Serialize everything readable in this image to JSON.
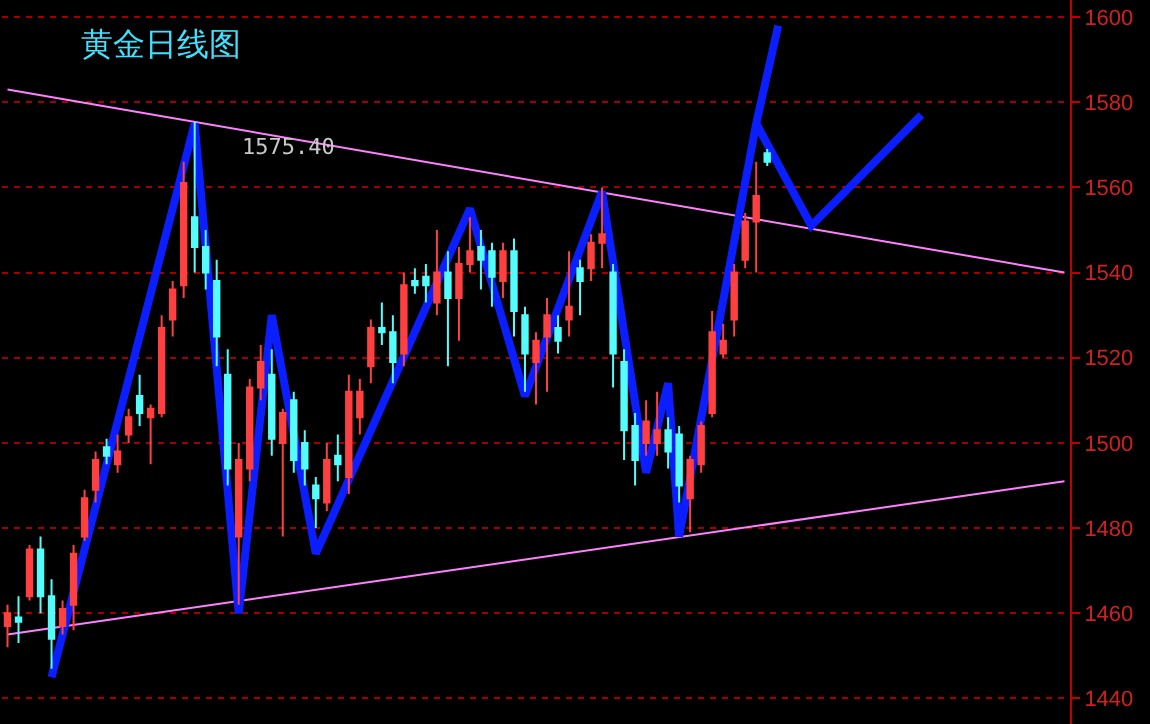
{
  "chart_data": {
    "type": "candlestick",
    "title": "黄金日线图",
    "categories": [
      null,
      null,
      null,
      null,
      null,
      null,
      null,
      null,
      null,
      null,
      null,
      null,
      null,
      null,
      null,
      null,
      null,
      null,
      null,
      null,
      null,
      null,
      null,
      null,
      null,
      null,
      null,
      null,
      null,
      null,
      null,
      null,
      null,
      null,
      null,
      null,
      null,
      null,
      null,
      null,
      null,
      null,
      null,
      null,
      null,
      null,
      null,
      null,
      null,
      null,
      null,
      null,
      null,
      null,
      null,
      null,
      null,
      null,
      null,
      null,
      null,
      null,
      null,
      null,
      null,
      null,
      null,
      null,
      null,
      null,
      null,
      null,
      null,
      null,
      null,
      null,
      null,
      null,
      null,
      null,
      null,
      null,
      null,
      null,
      null,
      null,
      null,
      null,
      null,
      null,
      null,
      null,
      null,
      null,
      null,
      null,
      null
    ],
    "ohlc": [
      [
        1457,
        1462,
        1452,
        1460
      ],
      [
        1459,
        1464,
        1453,
        1458
      ],
      [
        1464,
        1476,
        1463,
        1475
      ],
      [
        1475,
        1478,
        1460,
        1464
      ],
      [
        1464,
        1468,
        1447,
        1454
      ],
      [
        1457,
        1463,
        1455,
        1461
      ],
      [
        1462,
        1476,
        1456,
        1474
      ],
      [
        1478,
        1489,
        1477,
        1487
      ],
      [
        1489,
        1498,
        1486,
        1496
      ],
      [
        1499,
        1501,
        1495,
        1497
      ],
      [
        1495,
        1502,
        1493,
        1498
      ],
      [
        1502,
        1508,
        1500,
        1506
      ],
      [
        1511,
        1516,
        1504,
        1507
      ],
      [
        1506,
        1509,
        1495,
        1508
      ],
      [
        1507,
        1530,
        1506,
        1527
      ],
      [
        1529,
        1538,
        1525,
        1536
      ],
      [
        1537,
        1566,
        1534,
        1561
      ],
      [
        1553,
        1575.4,
        1540,
        1546
      ],
      [
        1546,
        1550,
        1536,
        1540
      ],
      [
        1538,
        1543,
        1518,
        1525
      ],
      [
        1516,
        1522,
        1490,
        1494
      ],
      [
        1478,
        1500,
        1462,
        1496
      ],
      [
        1494,
        1515,
        1491,
        1513
      ],
      [
        1513,
        1523,
        1510,
        1519
      ],
      [
        1516,
        1522,
        1497,
        1501
      ],
      [
        1500,
        1508,
        1478,
        1507
      ],
      [
        1510,
        1512,
        1493,
        1496
      ],
      [
        1500,
        1503,
        1490,
        1494
      ],
      [
        1490,
        1492,
        1480,
        1487
      ],
      [
        1486,
        1500,
        1484,
        1496
      ],
      [
        1497,
        1502,
        1491,
        1495
      ],
      [
        1492,
        1516,
        1488,
        1512
      ],
      [
        1506,
        1515,
        1502,
        1512
      ],
      [
        1518,
        1529,
        1514,
        1527
      ],
      [
        1527,
        1533,
        1523,
        1526
      ],
      [
        1526,
        1530,
        1514,
        1519
      ],
      [
        1521,
        1540,
        1518,
        1537
      ],
      [
        1538,
        1541,
        1535,
        1537
      ],
      [
        1539,
        1542,
        1533,
        1537
      ],
      [
        1533,
        1550,
        1530,
        1540
      ],
      [
        1540,
        1545,
        1518,
        1534
      ],
      [
        1534,
        1546,
        1524,
        1542
      ],
      [
        1542,
        1553,
        1540,
        1545
      ],
      [
        1546,
        1550,
        1536,
        1543
      ],
      [
        1545,
        1547,
        1532,
        1539
      ],
      [
        1538,
        1547,
        1534,
        1545
      ],
      [
        1545,
        1548,
        1525,
        1531
      ],
      [
        1530,
        1532,
        1512,
        1521
      ],
      [
        1519,
        1526,
        1509,
        1524
      ],
      [
        1525,
        1534,
        1512,
        1530
      ],
      [
        1527,
        1530,
        1521,
        1524
      ],
      [
        1529,
        1545,
        1525,
        1532
      ],
      [
        1541,
        1543,
        1530,
        1538
      ],
      [
        1541,
        1549,
        1538,
        1547
      ],
      [
        1547,
        1560,
        1541,
        1549
      ],
      [
        1540,
        1542,
        1513,
        1521
      ],
      [
        1519,
        1522,
        1496,
        1503
      ],
      [
        1504,
        1507,
        1490,
        1496
      ],
      [
        1500,
        1510,
        1497,
        1505
      ],
      [
        1500,
        1512,
        1497,
        1503
      ],
      [
        1503,
        1506,
        1494,
        1498
      ],
      [
        1502,
        1504,
        1486,
        1490
      ],
      [
        1487,
        1497,
        1479,
        1496
      ],
      [
        1495,
        1505,
        1493,
        1504
      ],
      [
        1507,
        1531,
        1506,
        1526
      ],
      [
        1521,
        1528,
        1520,
        1524
      ],
      [
        1529,
        1542,
        1525,
        1540
      ],
      [
        1543,
        1554,
        1541,
        1552
      ],
      [
        1552,
        1566,
        1540,
        1558
      ],
      [
        1568,
        1569,
        1565,
        1566
      ],
      null,
      null,
      null,
      null,
      null,
      null,
      null,
      null,
      null,
      null,
      null,
      null,
      null,
      null,
      null,
      null,
      null,
      null,
      null,
      null,
      null,
      null,
      null,
      null,
      null,
      null,
      null
    ],
    "series": [
      {
        "type": "line",
        "color": "#ff80ff",
        "values": [
          1583,
          null,
          null,
          null,
          null,
          null,
          null,
          null,
          null,
          null,
          null,
          null,
          null,
          null,
          null,
          null,
          null,
          null,
          null,
          null,
          null,
          null,
          null,
          null,
          null,
          null,
          null,
          null,
          null,
          null,
          null,
          null,
          null,
          null,
          null,
          null,
          null,
          null,
          null,
          null,
          null,
          null,
          null,
          null,
          null,
          null,
          null,
          null,
          null,
          null,
          null,
          null,
          null,
          null,
          null,
          null,
          null,
          null,
          null,
          null,
          null,
          null,
          null,
          null,
          null,
          null,
          null,
          null,
          null,
          null,
          null,
          null,
          null,
          null,
          null,
          null,
          null,
          null,
          null,
          null,
          null,
          null,
          null,
          null,
          null,
          null,
          null,
          null,
          null,
          null,
          null,
          null,
          null,
          null,
          null,
          null,
          1540
        ]
      },
      {
        "type": "line",
        "color": "#ff80ff",
        "values": [
          1455,
          null,
          null,
          null,
          null,
          null,
          null,
          null,
          null,
          null,
          null,
          null,
          null,
          null,
          null,
          null,
          null,
          null,
          null,
          null,
          null,
          null,
          null,
          null,
          null,
          null,
          null,
          null,
          null,
          null,
          null,
          null,
          null,
          null,
          null,
          null,
          null,
          null,
          null,
          null,
          null,
          null,
          null,
          null,
          null,
          null,
          null,
          null,
          null,
          null,
          null,
          null,
          null,
          null,
          null,
          null,
          null,
          null,
          null,
          null,
          null,
          null,
          null,
          null,
          null,
          null,
          null,
          null,
          null,
          null,
          null,
          null,
          null,
          null,
          null,
          null,
          null,
          null,
          null,
          null,
          null,
          null,
          null,
          null,
          null,
          null,
          null,
          null,
          null,
          null,
          null,
          null,
          null,
          null,
          null,
          null,
          1491
        ]
      },
      {
        "type": "line",
        "color": "#0a1eff",
        "values": [
          null,
          null,
          null,
          null,
          1445,
          null,
          null,
          null,
          null,
          null,
          null,
          null,
          null,
          null,
          null,
          null,
          null,
          1575,
          null,
          null,
          null,
          1460,
          null,
          null,
          1530,
          null,
          null,
          null,
          1474,
          null,
          null,
          null,
          null,
          null,
          null,
          null,
          null,
          null,
          null,
          null,
          null,
          null,
          1555,
          null,
          null,
          null,
          null,
          1511,
          null,
          null,
          null,
          null,
          null,
          null,
          1559,
          null,
          null,
          null,
          1493,
          null,
          1514,
          1478,
          null,
          null,
          null,
          null,
          null,
          null,
          1575,
          null,
          1598,
          null,
          null,
          null,
          null,
          null,
          null,
          null,
          null,
          null,
          null,
          null,
          null,
          null,
          null,
          null,
          null,
          null,
          null,
          null,
          null,
          null,
          null,
          null,
          null,
          null,
          null
        ]
      },
      {
        "type": "line",
        "color": "#0a1eff",
        "values": [
          null,
          null,
          null,
          null,
          null,
          null,
          null,
          null,
          null,
          null,
          null,
          null,
          null,
          null,
          null,
          null,
          null,
          null,
          null,
          null,
          null,
          null,
          null,
          null,
          null,
          null,
          null,
          null,
          null,
          null,
          null,
          null,
          null,
          null,
          null,
          null,
          null,
          null,
          null,
          null,
          null,
          null,
          null,
          null,
          null,
          null,
          null,
          null,
          null,
          null,
          null,
          null,
          null,
          null,
          null,
          null,
          null,
          null,
          null,
          null,
          null,
          null,
          null,
          null,
          null,
          null,
          null,
          null,
          1575,
          null,
          null,
          null,
          null,
          1551,
          null,
          null,
          null,
          null,
          null,
          null,
          null,
          null,
          null,
          1577,
          null,
          null,
          null,
          null,
          null,
          null,
          null,
          null,
          null,
          null,
          null,
          null,
          null
        ]
      }
    ],
    "annotations": [
      "1575.40"
    ],
    "ylim": [
      1434,
      1604
    ],
    "yticks": [
      1440,
      1460,
      1480,
      1500,
      1520,
      1540,
      1560,
      1580,
      1600
    ],
    "grid": "y",
    "tick_labels": "y"
  }
}
